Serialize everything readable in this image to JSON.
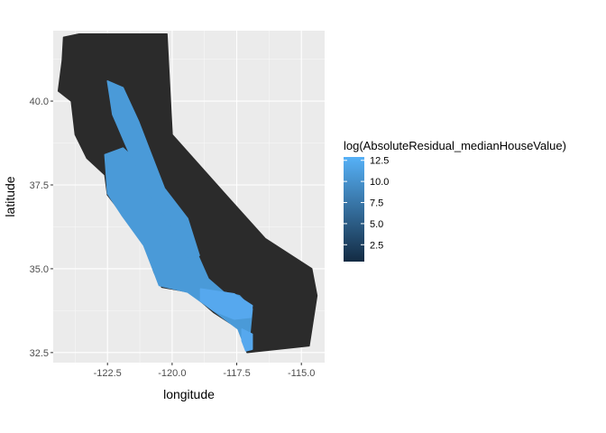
{
  "chart_data": {
    "type": "map",
    "xlabel": "longitude",
    "ylabel": "latitude",
    "xlim": [
      -124.6,
      -114.1
    ],
    "ylim": [
      32.2,
      42.1
    ],
    "x_ticks": [
      -122.5,
      -120.0,
      -117.5,
      -115.0
    ],
    "x_tick_labels": [
      "-122.5",
      "-120.0",
      "-117.5",
      "-115.0"
    ],
    "y_ticks": [
      32.5,
      35.0,
      37.5,
      40.0
    ],
    "y_tick_labels": [
      "32.5",
      "35.0",
      "37.5",
      "40.0"
    ],
    "grid": true,
    "panel_background": "#EBEBEB",
    "legend": {
      "title": "log(AbsoluteResidual_medianHouseValue)",
      "position": "right",
      "range": [
        0.5,
        12.9
      ],
      "breaks": [
        12.5,
        10.0,
        7.5,
        5.0,
        2.5
      ],
      "break_labels": [
        "12.5",
        "10.0",
        "7.5",
        "5.0",
        "2.5"
      ],
      "color_low": "#132B43",
      "color_high": "#56B1F7"
    },
    "regions": [
      {
        "name": "outline",
        "level": "low",
        "color": "#2B2B2B",
        "outline": [
          [
            -124.2,
            41.9
          ],
          [
            -123.6,
            42.0
          ],
          [
            -121.8,
            42.0
          ],
          [
            -120.2,
            42.0
          ],
          [
            -120.0,
            39.0
          ],
          [
            -117.8,
            37.1
          ],
          [
            -116.4,
            35.9
          ],
          [
            -114.6,
            35.0
          ],
          [
            -114.4,
            34.2
          ],
          [
            -114.6,
            33.2
          ],
          [
            -114.7,
            32.7
          ],
          [
            -117.1,
            32.5
          ],
          [
            -117.4,
            33.2
          ],
          [
            -118.4,
            33.7
          ],
          [
            -119.3,
            34.3
          ],
          [
            -120.4,
            34.45
          ],
          [
            -120.7,
            34.9
          ],
          [
            -121.0,
            35.6
          ],
          [
            -121.9,
            36.6
          ],
          [
            -122.5,
            37.2
          ],
          [
            -122.6,
            37.8
          ],
          [
            -123.3,
            38.3
          ],
          [
            -123.75,
            39.0
          ],
          [
            -123.9,
            40.0
          ],
          [
            -124.4,
            40.3
          ],
          [
            -124.25,
            41.2
          ]
        ]
      },
      {
        "name": "coastal-urban-band",
        "level": "high",
        "color": "#4A9AD8",
        "outline": [
          [
            -122.6,
            38.4
          ],
          [
            -121.9,
            38.6
          ],
          [
            -121.2,
            38.1
          ],
          [
            -120.6,
            37.3
          ],
          [
            -120.0,
            36.6
          ],
          [
            -119.3,
            36.0
          ],
          [
            -119.0,
            35.4
          ],
          [
            -118.6,
            34.7
          ],
          [
            -118.0,
            34.3
          ],
          [
            -117.4,
            34.2
          ],
          [
            -116.9,
            33.8
          ],
          [
            -117.0,
            33.0
          ],
          [
            -117.15,
            32.6
          ],
          [
            -117.45,
            33.2
          ],
          [
            -118.4,
            33.75
          ],
          [
            -119.4,
            34.3
          ],
          [
            -120.5,
            34.5
          ],
          [
            -120.75,
            35.0
          ],
          [
            -121.1,
            35.7
          ],
          [
            -121.95,
            36.6
          ],
          [
            -122.5,
            37.25
          ],
          [
            -122.55,
            37.85
          ]
        ]
      },
      {
        "name": "central-valley",
        "level": "high",
        "color": "#4A9AD8",
        "outline": [
          [
            -122.5,
            40.6
          ],
          [
            -121.9,
            40.4
          ],
          [
            -121.3,
            39.4
          ],
          [
            -120.8,
            38.4
          ],
          [
            -120.3,
            37.4
          ],
          [
            -119.4,
            36.5
          ],
          [
            -118.95,
            35.4
          ],
          [
            -119.4,
            35.3
          ],
          [
            -120.2,
            36.4
          ],
          [
            -121.1,
            37.5
          ],
          [
            -121.8,
            38.7
          ],
          [
            -122.3,
            39.6
          ]
        ]
      },
      {
        "name": "la-basin",
        "level": "high",
        "color": "#56A8EE",
        "outline": [
          [
            -118.9,
            34.4
          ],
          [
            -117.6,
            34.25
          ],
          [
            -116.9,
            33.9
          ],
          [
            -116.95,
            33.55
          ],
          [
            -117.6,
            33.5
          ],
          [
            -118.4,
            33.75
          ],
          [
            -118.9,
            34.05
          ]
        ]
      },
      {
        "name": "san-diego",
        "level": "high",
        "color": "#56A8EE",
        "outline": [
          [
            -117.3,
            33.2
          ],
          [
            -116.9,
            33.05
          ],
          [
            -116.9,
            32.6
          ],
          [
            -117.15,
            32.55
          ],
          [
            -117.3,
            32.85
          ]
        ]
      }
    ]
  }
}
